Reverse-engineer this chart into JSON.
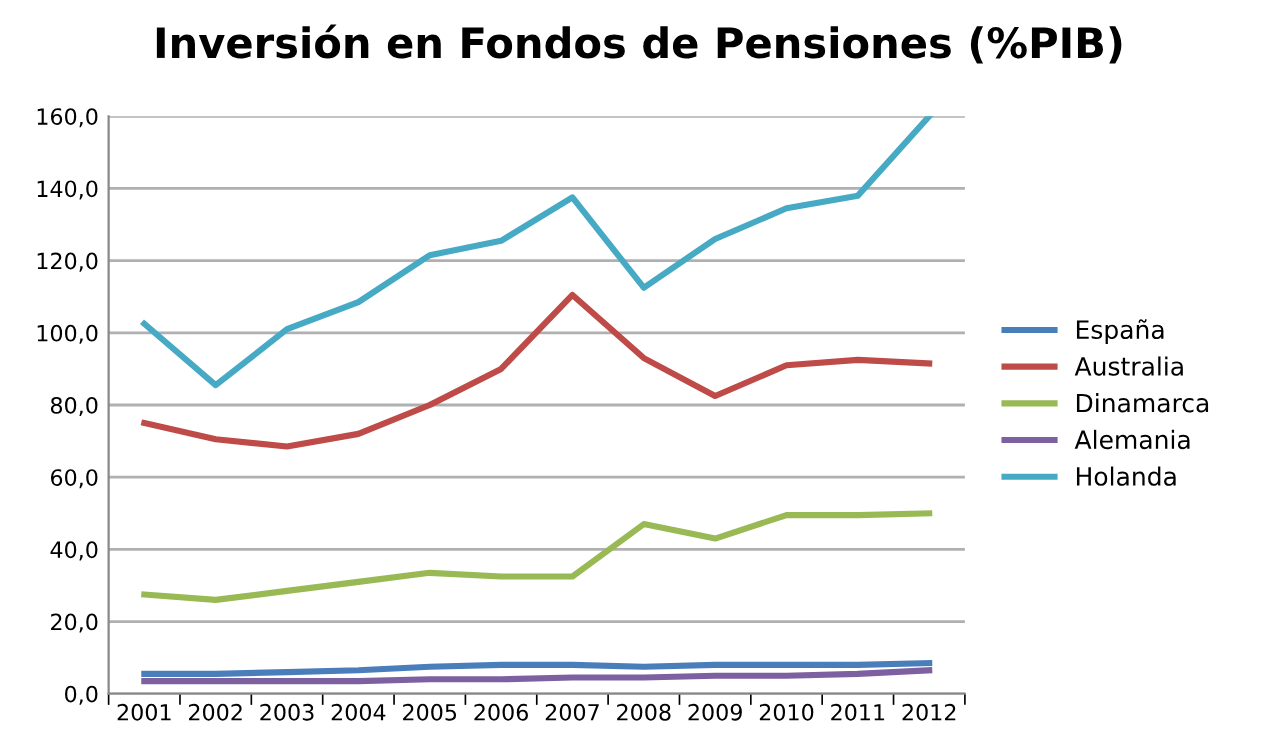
{
  "chart_data": {
    "type": "line",
    "title": "Inversión en Fondos de Pensiones (%PIB)",
    "categories": [
      "2001",
      "2002",
      "2003",
      "2004",
      "2005",
      "2006",
      "2007",
      "2008",
      "2009",
      "2010",
      "2011",
      "2012"
    ],
    "series": [
      {
        "name": "España",
        "color": "#4a7ebb",
        "values": [
          5.5,
          5.5,
          6,
          6.5,
          7.5,
          8,
          8,
          7.5,
          8,
          8,
          8,
          8.5
        ]
      },
      {
        "name": "Australia",
        "color": "#be4b48",
        "values": [
          75,
          70.5,
          68.5,
          72,
          80,
          90,
          110.5,
          93,
          82.5,
          91,
          92.5,
          91.5
        ]
      },
      {
        "name": "Dinamarca",
        "color": "#98b954",
        "values": [
          27.5,
          26,
          28.5,
          31,
          33.5,
          32.5,
          32.5,
          47,
          43,
          49.5,
          49.5,
          50
        ]
      },
      {
        "name": "Alemania",
        "color": "#7d60a0",
        "values": [
          3.5,
          3.5,
          3.5,
          3.5,
          4,
          4,
          4.5,
          4.5,
          5,
          5,
          5.5,
          6.5
        ]
      },
      {
        "name": "Holanda",
        "color": "#46aac5",
        "values": [
          102.5,
          85.5,
          101,
          108.5,
          121.5,
          125.5,
          137.5,
          112.5,
          126,
          134.5,
          138,
          160
        ]
      }
    ],
    "ylim": [
      0,
      160
    ],
    "yticks": [
      {
        "value": 0,
        "label": "0,0"
      },
      {
        "value": 20,
        "label": "20,0"
      },
      {
        "value": 40,
        "label": "40,0"
      },
      {
        "value": 60,
        "label": "60,0"
      },
      {
        "value": 80,
        "label": "80,0"
      },
      {
        "value": 100,
        "label": "100,0"
      },
      {
        "value": 120,
        "label": "120,0"
      },
      {
        "value": 140,
        "label": "140,0"
      },
      {
        "value": 160,
        "label": "160,0"
      }
    ],
    "grid": "y",
    "legend": "right",
    "marker": "none",
    "line_style": "solid"
  }
}
